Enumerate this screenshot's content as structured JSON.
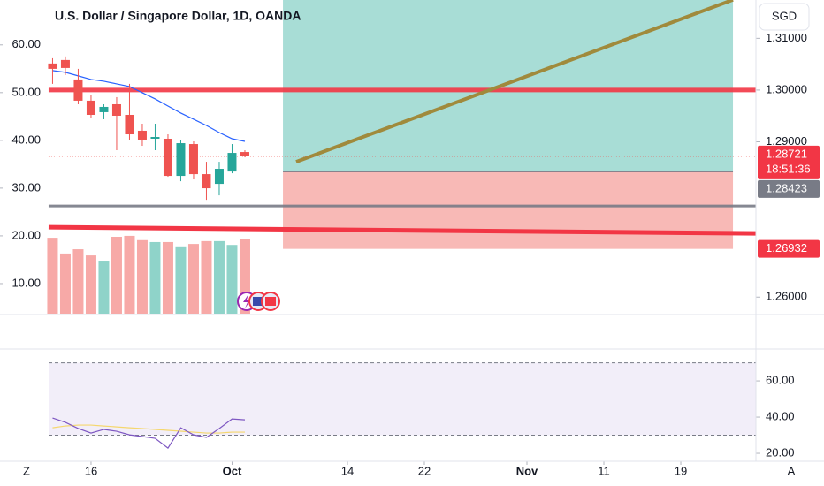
{
  "chart_data": [
    {
      "type": "candlestick",
      "title": "U.S. Dollar / Singapore Dollar, 1D, OANDA",
      "currency": "SGD",
      "x": [
        0,
        1,
        2,
        3,
        4,
        5,
        6,
        7,
        8,
        9,
        10,
        11,
        12,
        13,
        14,
        15
      ],
      "open": [
        1.30513,
        1.30581,
        1.30205,
        1.29795,
        1.29573,
        1.29726,
        1.29521,
        1.29214,
        1.2906,
        1.2906,
        1.28342,
        1.28957,
        1.28376,
        1.28188,
        1.28427,
        1.28803
      ],
      "high": [
        1.30615,
        1.3065,
        1.3041,
        1.29897,
        1.29726,
        1.29863,
        1.3012,
        1.2935,
        1.2935,
        1.29145,
        1.29043,
        1.29009,
        1.28615,
        1.28615,
        1.28957,
        1.28837
      ],
      "low": [
        1.3012,
        1.30291,
        1.29726,
        1.2947,
        1.29436,
        1.28838,
        1.29043,
        1.28923,
        1.28838,
        1.28325,
        1.28239,
        1.28274,
        1.2788,
        1.27966,
        1.28393,
        1.28701
      ],
      "close": [
        1.3041,
        1.30427,
        1.29795,
        1.29521,
        1.29675,
        1.29504,
        1.29145,
        1.29043,
        1.29094,
        1.28342,
        1.28974,
        1.28376,
        1.28103,
        1.28479,
        1.28786,
        1.28721
      ],
      "up_color": "#26a69a",
      "down_color": "#ef5350",
      "ma": {
        "color": "#2962ff",
        "values": [
          1.30376,
          1.30342,
          1.30274,
          1.30205,
          1.30171,
          1.3012,
          1.30068,
          1.29949,
          1.29829,
          1.29692,
          1.29556,
          1.29436,
          1.29316,
          1.29179,
          1.2906,
          1.29009
        ]
      },
      "volume": {
        "axis": "y2",
        "up_color": "#8fd3c9",
        "down_color": "#f7a9a7",
        "values": [
          19.6,
          16.3,
          17.2,
          15.9,
          14.8,
          19.8,
          20.0,
          19.1,
          18.7,
          18.7,
          17.8,
          18.3,
          18.9,
          18.9,
          18.1,
          19.4
        ]
      },
      "xlim": [
        -4.1,
        54.86
      ],
      "xticks": [
        {
          "value": 3,
          "label": "16"
        },
        {
          "value": 14,
          "label": "Oct"
        },
        {
          "value": 23,
          "label": "14"
        },
        {
          "value": 29,
          "label": "22"
        },
        {
          "value": 37,
          "label": "Nov"
        },
        {
          "value": 43,
          "label": "11"
        },
        {
          "value": 49,
          "label": "19"
        }
      ],
      "ylim": [
        1.2568,
        1.3174
      ],
      "yticks": [
        {
          "value": 1.26,
          "label": "1.26000"
        },
        {
          "value": 1.29,
          "label": "1.29000"
        },
        {
          "value": 1.3,
          "label": "1.30000"
        },
        {
          "value": 1.31,
          "label": "1.31000"
        }
      ],
      "y2lim": [
        3.7,
        69.4
      ],
      "y2ticks": [
        {
          "value": 10,
          "label": "10.00"
        },
        {
          "value": 20,
          "label": "20.00"
        },
        {
          "value": 30,
          "label": "30.00"
        },
        {
          "value": 40,
          "label": "40.00"
        },
        {
          "value": 50,
          "label": "50.00"
        },
        {
          "value": 60,
          "label": "60.00"
        }
      ],
      "last_price": 1.28721,
      "countdown": "18:51:36",
      "levels": [
        {
          "value": 1.3,
          "color": "#f23645"
        },
        {
          "value": 1.27761,
          "color": "#787b86"
        }
      ],
      "trend_lines": [
        {
          "color": "#f23645",
          "x": [
            -0.31,
            54.86
          ],
          "y": [
            1.2735,
            1.27231
          ]
        },
        {
          "color": "#a08a3c",
          "x": [
            19.0,
            53.07
          ],
          "y": [
            1.28615,
            1.31744
          ]
        }
      ],
      "position": {
        "x": [
          17.97,
          53.07
        ],
        "target": 1.3174,
        "entry": 1.28423,
        "stop": 1.26932,
        "profit_color": "#a8ddd6",
        "loss_color": "#f8b9b6"
      }
    },
    {
      "type": "line",
      "x": [
        0,
        1,
        2,
        3,
        4,
        5,
        6,
        7,
        8,
        9,
        10,
        11,
        12,
        13,
        14,
        15
      ],
      "series": [
        {
          "color": "#7e57c2",
          "values": [
            39.5,
            37.1,
            33.7,
            31.2,
            33.2,
            32.2,
            30.2,
            29.3,
            28.3,
            22.9,
            34.1,
            30.2,
            28.8,
            33.7,
            39.0,
            38.5
          ]
        },
        {
          "color": "#f5d76e",
          "values": [
            34.1,
            35.1,
            35.6,
            35.6,
            35.1,
            34.6,
            34.1,
            33.7,
            33.2,
            32.7,
            32.2,
            31.7,
            31.2,
            31.2,
            31.7,
            31.7
          ]
        }
      ],
      "ylim": [
        16.6,
        77.6
      ],
      "yticks": [
        {
          "value": 20,
          "label": "20.00"
        },
        {
          "value": 40,
          "label": "40.00"
        },
        {
          "value": 60,
          "label": "60.00"
        }
      ],
      "bands": [
        30,
        70
      ],
      "midline": 50,
      "band_color": "#ede7f6"
    }
  ]
}
